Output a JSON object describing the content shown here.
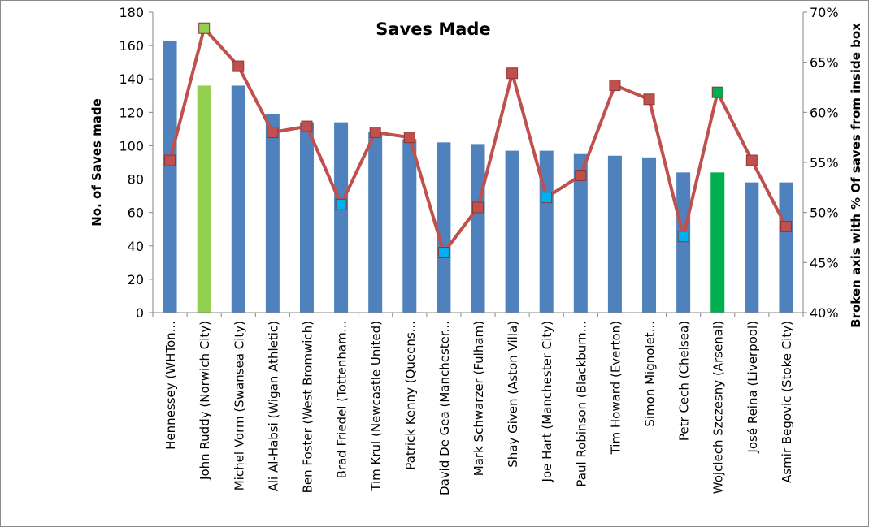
{
  "chart_data": {
    "type": "bar",
    "title": "Saves Made",
    "ylabel": "No. of Saves made",
    "y2label": "Broken axis with % Of saves from inside box",
    "ylim": [
      0,
      180
    ],
    "y2lim": [
      0.4,
      0.7
    ],
    "yticks": [
      "0",
      "20",
      "40",
      "60",
      "80",
      "100",
      "120",
      "140",
      "160",
      "180"
    ],
    "y2ticks": [
      "40%",
      "45%",
      "50%",
      "55%",
      "60%",
      "65%",
      "70%"
    ],
    "grid": false,
    "legend": "none",
    "categories": [
      "Hennessey (WHTon...",
      "John Ruddy (Norwich City)",
      "Michel Vorm (Swansea City)",
      "Ali Al-Habsi (Wigan Athletic)",
      "Ben Foster (West Bromwich)",
      "Brad Friedel (Tottenham...",
      "Tim Krul (Newcastle United)",
      "Patrick Kenny (Queens...",
      "David De Gea (Manchester...",
      "Mark Schwarzer (Fulham)",
      "Shay Given (Aston Villa)",
      "Joe Hart (Manchester City)",
      "Paul Robinson (Blackburn...",
      "Tim Howard (Everton)",
      "Simon Mignolet...",
      "Petr Cech (Chelsea)",
      "Wojciech Szczesny (Arsenal)",
      "José Reina (Liverpool)",
      "Asmir Begovic (Stoke City)"
    ],
    "series": [
      {
        "type": "bar",
        "axis": "left",
        "values": [
          163,
          136,
          136,
          119,
          114,
          114,
          108,
          104,
          102,
          101,
          97,
          97,
          95,
          94,
          93,
          84,
          84,
          78,
          78
        ],
        "colors": [
          "#4f81bd",
          "#92d050",
          "#4f81bd",
          "#4f81bd",
          "#4f81bd",
          "#4f81bd",
          "#4f81bd",
          "#4f81bd",
          "#4f81bd",
          "#4f81bd",
          "#4f81bd",
          "#4f81bd",
          "#4f81bd",
          "#4f81bd",
          "#4f81bd",
          "#4f81bd",
          "#00b050",
          "#4f81bd",
          "#4f81bd"
        ]
      },
      {
        "type": "line",
        "axis": "right",
        "values": [
          0.552,
          0.684,
          0.646,
          0.58,
          0.586,
          0.508,
          0.58,
          0.575,
          0.46,
          0.505,
          0.639,
          0.515,
          0.537,
          0.627,
          0.613,
          0.476,
          0.62,
          0.552,
          0.486
        ],
        "line_color": "#c0504d",
        "marker_colors": [
          "#c0504d",
          "#92d050",
          "#c0504d",
          "#c0504d",
          "#c0504d",
          "#00b0f0",
          "#c0504d",
          "#c0504d",
          "#00b0f0",
          "#c0504d",
          "#c0504d",
          "#00b0f0",
          "#c0504d",
          "#c0504d",
          "#c0504d",
          "#00b0f0",
          "#00b050",
          "#c0504d",
          "#c0504d"
        ]
      }
    ]
  }
}
